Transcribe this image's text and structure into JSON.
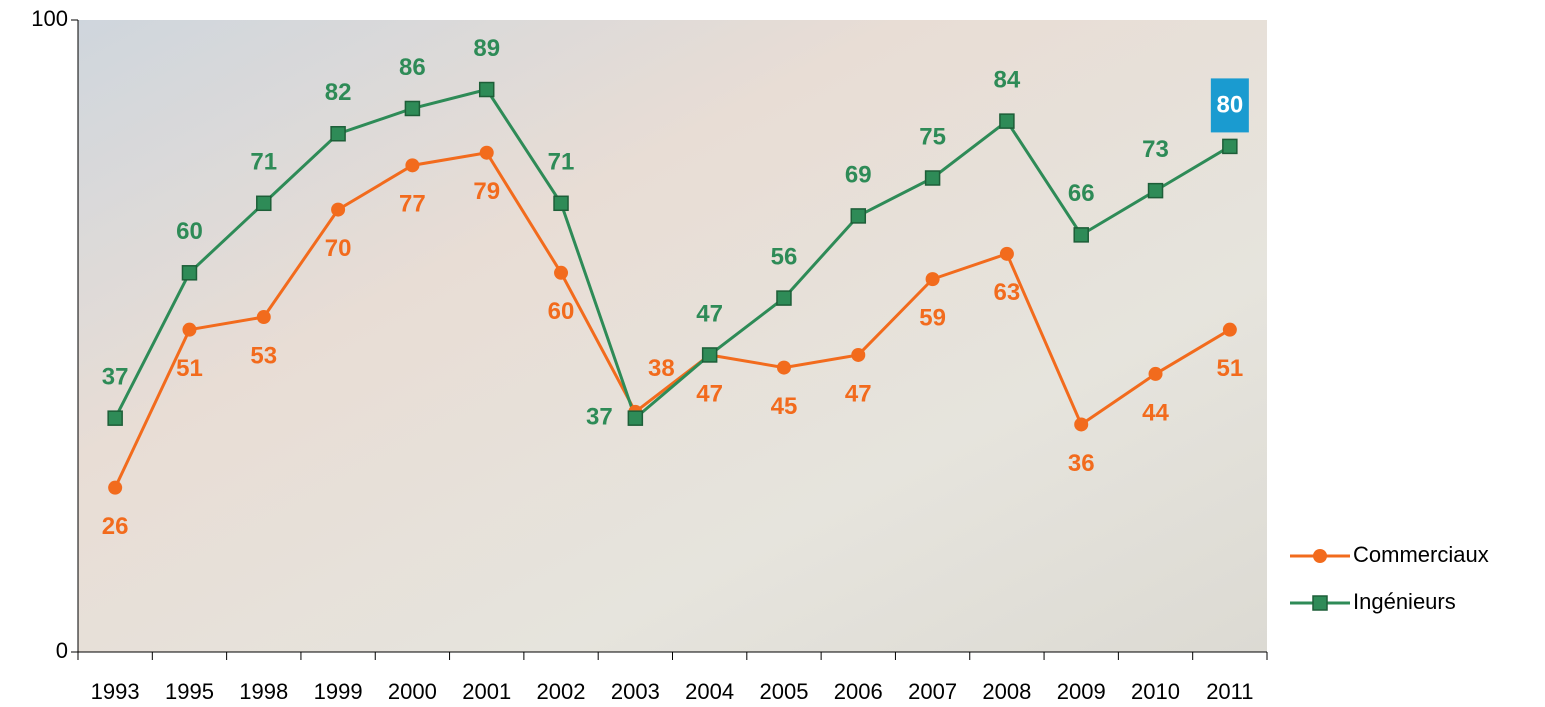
{
  "chart_data": {
    "type": "line",
    "categories": [
      "1993",
      "1995",
      "1998",
      "1999",
      "2000",
      "2001",
      "2002",
      "2003",
      "2004",
      "2005",
      "2006",
      "2007",
      "2008",
      "2009",
      "2010",
      "2011"
    ],
    "series": [
      {
        "name": "Commerciaux",
        "color": "#f26b1d",
        "marker": "circle",
        "values": [
          26,
          51,
          53,
          70,
          77,
          79,
          60,
          38,
          47,
          45,
          47,
          59,
          63,
          36,
          44,
          51
        ]
      },
      {
        "name": "Ingénieurs",
        "color": "#2e8b57",
        "marker": "square",
        "values": [
          37,
          60,
          71,
          82,
          86,
          89,
          71,
          37,
          47,
          56,
          69,
          75,
          84,
          66,
          73,
          80
        ]
      }
    ],
    "ylim": [
      0,
      100
    ],
    "yticks": [
      0,
      100
    ],
    "legend": "right"
  }
}
